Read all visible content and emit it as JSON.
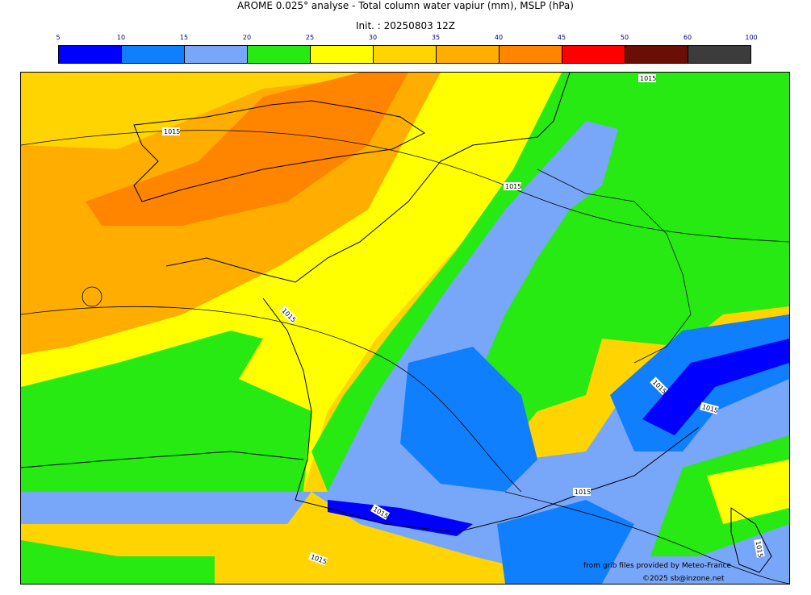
{
  "header": {
    "title": "AROME 0.025° analyse - Total column water vapiur (mm), MSLP (hPa)",
    "init": "Init. : 20250803 12Z"
  },
  "colorbar": {
    "ticks": [
      "5",
      "10",
      "15",
      "20",
      "25",
      "30",
      "35",
      "40",
      "45",
      "50",
      "60",
      "100"
    ],
    "colors": [
      "#0000ff",
      "#0f7ffd",
      "#78a6f9",
      "#27ea12",
      "#ffff00",
      "#ffd400",
      "#ffae00",
      "#ff8400",
      "#ff0000",
      "#6a0f05",
      "#3c3c3c"
    ]
  },
  "map": {
    "isobar_labels": [
      "1015",
      "1015",
      "1015",
      "1015",
      "1015",
      "1015",
      "1015",
      "1015",
      "1015",
      "1015"
    ]
  },
  "credits": {
    "source": "from grib files provided by Meteo-France",
    "copyright": "©2025 sb@inzone.net"
  }
}
